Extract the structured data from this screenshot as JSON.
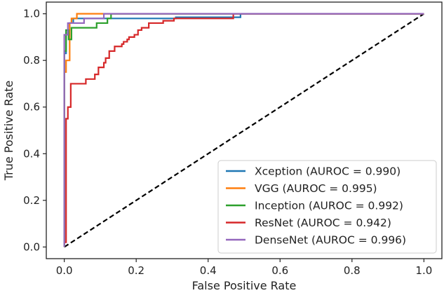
{
  "chart_data": {
    "type": "line",
    "title": "",
    "xlabel": "False Positive Rate",
    "ylabel": "True Positive Rate",
    "xlim": [
      -0.05,
      1.05
    ],
    "ylim": [
      -0.05,
      1.05
    ],
    "xticks": [
      0.0,
      0.2,
      0.4,
      0.6,
      0.8,
      1.0
    ],
    "xtick_labels": [
      "0.0",
      "0.2",
      "0.4",
      "0.6",
      "0.8",
      "1.0"
    ],
    "yticks": [
      0.0,
      0.2,
      0.4,
      0.6,
      0.8,
      1.0
    ],
    "ytick_labels": [
      "0.0",
      "0.2",
      "0.4",
      "0.6",
      "0.8",
      "1.0"
    ],
    "grid": false,
    "legend_position": "lower-right",
    "reference_line": {
      "x": [
        0,
        1
      ],
      "y": [
        0,
        1
      ],
      "color": "#000000",
      "style": "dashed"
    },
    "series": [
      {
        "name": "Xception",
        "label": "Xception (AUROC = 0.990)",
        "color": "#1f77b4",
        "x": [
          0,
          0,
          0.005,
          0.005,
          0.015,
          0.015,
          0.025,
          0.025,
          0.04,
          0.04,
          0.31,
          0.31,
          0.49,
          0.49,
          1.0
        ],
        "y": [
          0,
          0.83,
          0.83,
          0.93,
          0.93,
          0.96,
          0.96,
          0.98,
          0.98,
          0.98,
          0.98,
          0.985,
          0.985,
          1.0,
          1.0
        ]
      },
      {
        "name": "VGG",
        "label": "VGG (AUROC = 0.995)",
        "color": "#ff7f0e",
        "x": [
          0,
          0,
          0.005,
          0.005,
          0.015,
          0.015,
          0.02,
          0.02,
          0.035,
          0.035,
          1.0
        ],
        "y": [
          0,
          0.75,
          0.75,
          0.8,
          0.8,
          0.96,
          0.96,
          0.98,
          0.98,
          1.0,
          1.0
        ]
      },
      {
        "name": "Inception",
        "label": "Inception (AUROC = 0.992)",
        "color": "#2ca02c",
        "x": [
          0,
          0,
          0.005,
          0.005,
          0.012,
          0.012,
          0.02,
          0.02,
          0.09,
          0.09,
          0.12,
          0.12,
          0.13,
          0.13,
          1.0
        ],
        "y": [
          0,
          0.84,
          0.84,
          0.93,
          0.93,
          0.89,
          0.89,
          0.94,
          0.94,
          0.96,
          0.96,
          0.98,
          0.98,
          1.0,
          1.0
        ]
      },
      {
        "name": "ResNet",
        "label": "ResNet (AUROC = 0.942)",
        "color": "#d62728",
        "x": [
          0,
          0.005,
          0.005,
          0.01,
          0.01,
          0.018,
          0.018,
          0.028,
          0.028,
          0.06,
          0.06,
          0.085,
          0.085,
          0.095,
          0.095,
          0.11,
          0.11,
          0.115,
          0.115,
          0.125,
          0.125,
          0.14,
          0.14,
          0.16,
          0.16,
          0.165,
          0.165,
          0.175,
          0.175,
          0.18,
          0.18,
          0.195,
          0.195,
          0.205,
          0.205,
          0.215,
          0.215,
          0.235,
          0.235,
          0.275,
          0.275,
          0.305,
          0.305,
          0.47,
          0.47,
          1.0
        ],
        "y": [
          0.02,
          0.02,
          0.55,
          0.55,
          0.6,
          0.6,
          0.7,
          0.7,
          0.7,
          0.7,
          0.72,
          0.72,
          0.74,
          0.74,
          0.77,
          0.77,
          0.79,
          0.79,
          0.81,
          0.81,
          0.84,
          0.84,
          0.86,
          0.86,
          0.87,
          0.87,
          0.88,
          0.88,
          0.89,
          0.89,
          0.9,
          0.9,
          0.91,
          0.91,
          0.93,
          0.93,
          0.94,
          0.94,
          0.96,
          0.96,
          0.97,
          0.97,
          0.98,
          0.98,
          1.0,
          1.0
        ]
      },
      {
        "name": "DenseNet",
        "label": "DenseNet (AUROC = 0.996)",
        "color": "#9467bd",
        "x": [
          0,
          0,
          0.01,
          0.01,
          0.02,
          0.02,
          0.055,
          0.055,
          0.11,
          0.11,
          1.0
        ],
        "y": [
          0,
          0.91,
          0.91,
          0.96,
          0.96,
          0.96,
          0.96,
          0.98,
          0.98,
          1.0,
          1.0
        ]
      }
    ]
  }
}
